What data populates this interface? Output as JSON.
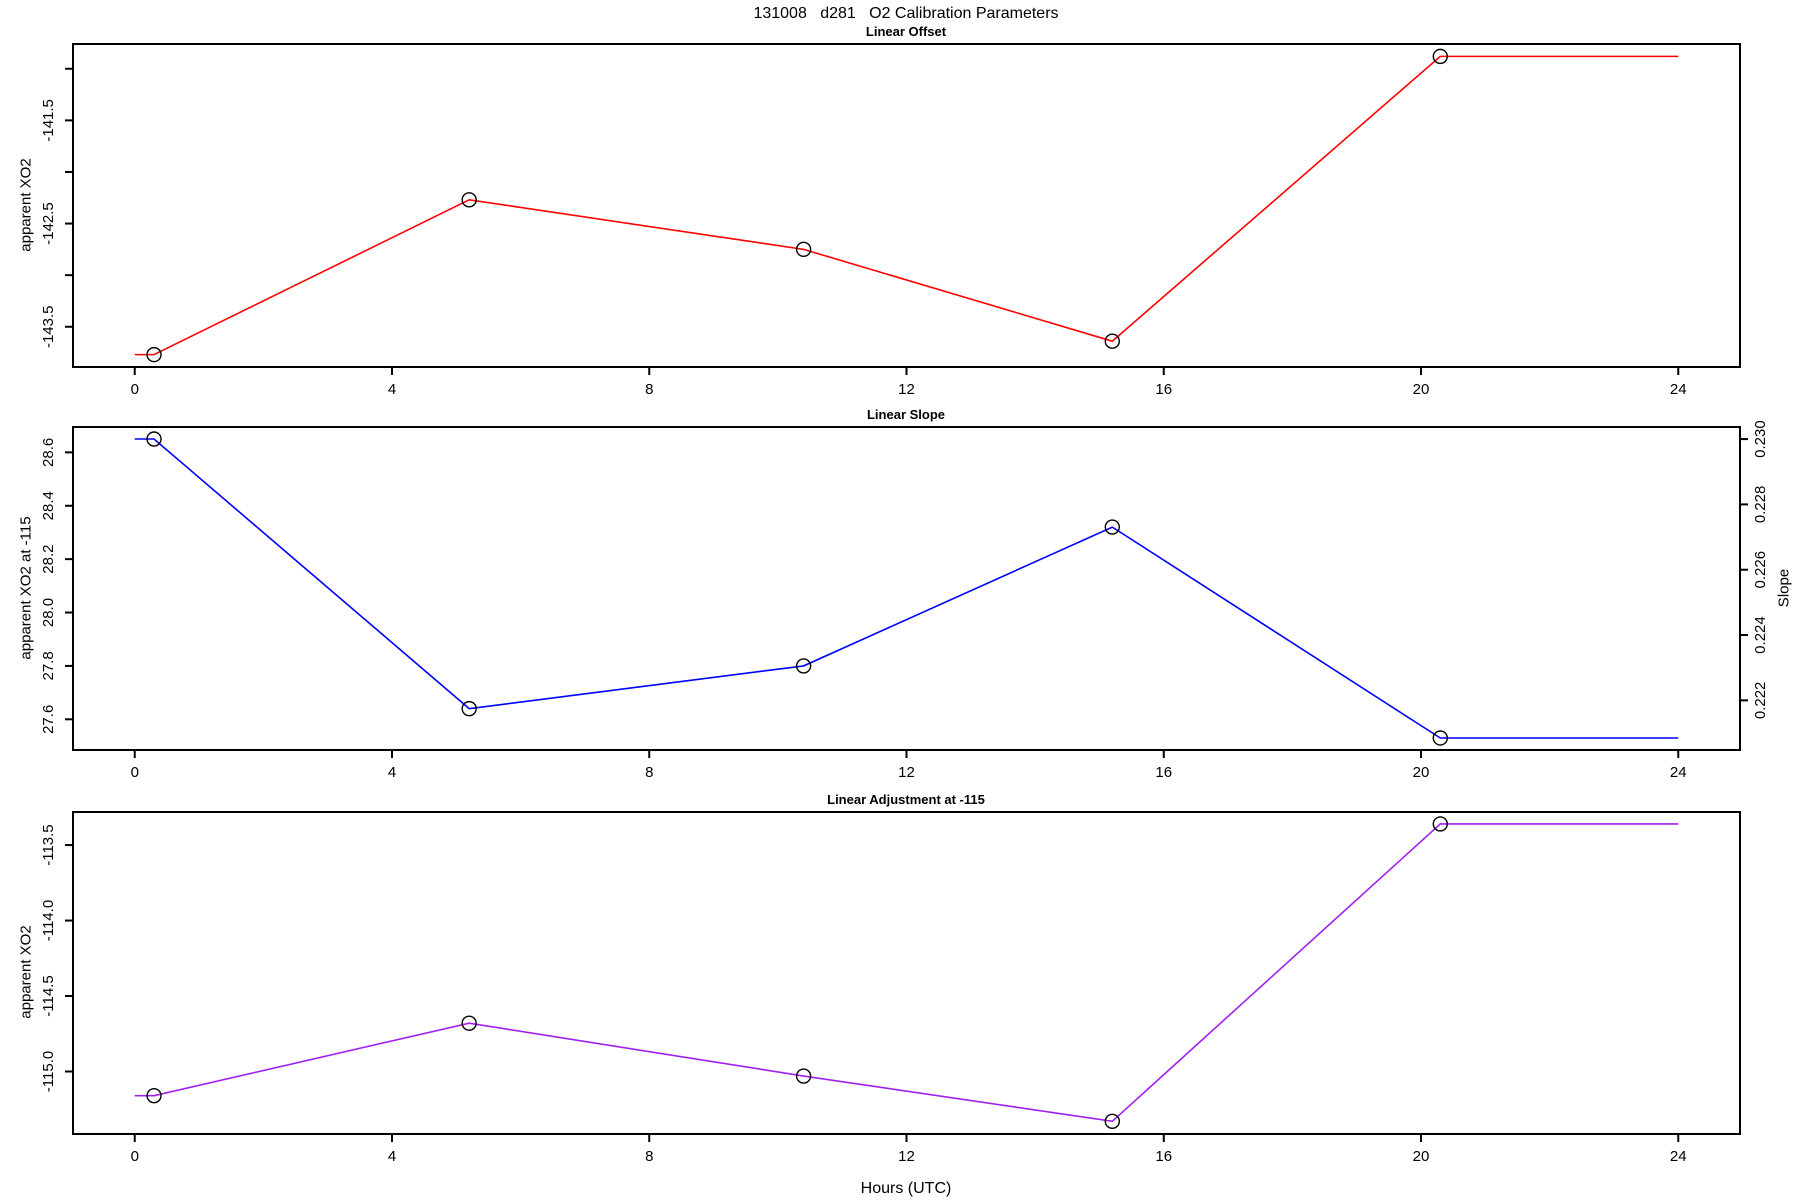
{
  "main_title": "131008   d281   O2 Calibration Parameters",
  "xlabel": "Hours (UTC)",
  "chart_data": [
    {
      "type": "line",
      "title": "Linear Offset",
      "ylabel": "apparent XO2",
      "color": "#ff0000",
      "marker_color": "#000000",
      "x": [
        0.3,
        5.2,
        10.4,
        15.2,
        20.3
      ],
      "values": [
        -143.77,
        -142.27,
        -142.75,
        -143.64,
        -140.88
      ],
      "extend_x": [
        0,
        24
      ],
      "xlim": [
        -0.96,
        24.96
      ],
      "ylim": [
        -143.89,
        -140.76
      ],
      "grid": false,
      "legend": null,
      "xticks": [
        {
          "v": 0,
          "label": "0"
        },
        {
          "v": 4,
          "label": "4"
        },
        {
          "v": 8,
          "label": "8"
        },
        {
          "v": 12,
          "label": "12"
        },
        {
          "v": 16,
          "label": "16"
        },
        {
          "v": 20,
          "label": "20"
        },
        {
          "v": 24,
          "label": "24"
        }
      ],
      "yticks": [
        {
          "v": -141.0,
          "label": ""
        },
        {
          "v": -141.5,
          "label": "-141.5"
        },
        {
          "v": -142.0,
          "label": ""
        },
        {
          "v": -142.5,
          "label": "-142.5"
        },
        {
          "v": -143.0,
          "label": ""
        },
        {
          "v": -143.5,
          "label": "-143.5"
        }
      ]
    },
    {
      "type": "line",
      "title": "Linear Slope",
      "ylabel": "apparent XO2 at -115",
      "color": "#0000ff",
      "marker_color": "#000000",
      "x": [
        0.3,
        5.2,
        10.4,
        15.2,
        20.3
      ],
      "values": [
        28.65,
        27.64,
        27.8,
        28.32,
        27.53
      ],
      "extend_x": [
        0,
        24
      ],
      "xlim": [
        -0.96,
        24.96
      ],
      "ylim": [
        27.485,
        28.695
      ],
      "grid": false,
      "legend": null,
      "xticks": [
        {
          "v": 0,
          "label": "0"
        },
        {
          "v": 4,
          "label": "4"
        },
        {
          "v": 8,
          "label": "8"
        },
        {
          "v": 12,
          "label": "12"
        },
        {
          "v": 16,
          "label": "16"
        },
        {
          "v": 20,
          "label": "20"
        },
        {
          "v": 24,
          "label": "24"
        }
      ],
      "yticks": [
        {
          "v": 27.6,
          "label": "27.6"
        },
        {
          "v": 27.8,
          "label": "27.8"
        },
        {
          "v": 28.0,
          "label": "28.0"
        },
        {
          "v": 28.2,
          "label": "28.2"
        },
        {
          "v": 28.4,
          "label": "28.4"
        },
        {
          "v": 28.6,
          "label": "28.6"
        }
      ],
      "right_axis": {
        "label": "Slope",
        "ylim": [
          0.22048,
          0.23037
        ],
        "ticks": [
          {
            "v": 0.222,
            "label": "0.222"
          },
          {
            "v": 0.224,
            "label": "0.224"
          },
          {
            "v": 0.226,
            "label": "0.226"
          },
          {
            "v": 0.228,
            "label": "0.228"
          },
          {
            "v": 0.23,
            "label": "0.230"
          }
        ]
      }
    },
    {
      "type": "line",
      "title": "Linear Adjustment at -115",
      "ylabel": "apparent XO2",
      "color": "#a020f0",
      "marker_color": "#000000",
      "x": [
        0.3,
        5.2,
        10.4,
        15.2,
        20.3
      ],
      "values": [
        -115.16,
        -114.68,
        -115.03,
        -115.33,
        -113.36
      ],
      "extend_x": [
        0,
        24
      ],
      "xlim": [
        -0.96,
        24.96
      ],
      "ylim": [
        -115.414,
        -113.281
      ],
      "grid": false,
      "legend": null,
      "xticks": [
        {
          "v": 0,
          "label": "0"
        },
        {
          "v": 4,
          "label": "4"
        },
        {
          "v": 8,
          "label": "8"
        },
        {
          "v": 12,
          "label": "12"
        },
        {
          "v": 16,
          "label": "16"
        },
        {
          "v": 20,
          "label": "20"
        },
        {
          "v": 24,
          "label": "24"
        }
      ],
      "yticks": [
        {
          "v": -113.5,
          "label": "-113.5"
        },
        {
          "v": -114.0,
          "label": "-114.0"
        },
        {
          "v": -114.5,
          "label": "-114.5"
        },
        {
          "v": -115.0,
          "label": "-115.0"
        }
      ]
    }
  ]
}
